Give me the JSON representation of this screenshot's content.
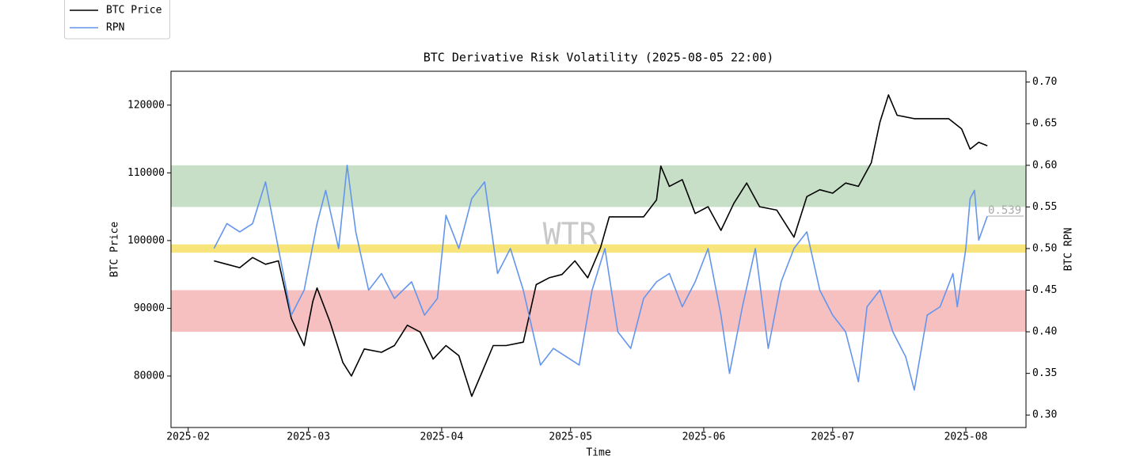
{
  "chart_data": {
    "type": "line",
    "title": "BTC Derivative Risk Volatility (2025-08-05 22:00)",
    "xlabel": "Time",
    "ylabel": "BTC Price",
    "y2label": "BTC RPN",
    "watermark": "WTR",
    "legend": "upper left",
    "xlim": [
      "2025-01-28",
      "2025-08-15"
    ],
    "xticks": [
      {
        "value": "2025-02-01",
        "label": "2025-02"
      },
      {
        "value": "2025-03-01",
        "label": "2025-03"
      },
      {
        "value": "2025-04-01",
        "label": "2025-04"
      },
      {
        "value": "2025-05-01",
        "label": "2025-05"
      },
      {
        "value": "2025-06-01",
        "label": "2025-06"
      },
      {
        "value": "2025-07-01",
        "label": "2025-07"
      },
      {
        "value": "2025-08-01",
        "label": "2025-08"
      }
    ],
    "ylim": [
      72400,
      125000
    ],
    "yticks": [
      80000,
      90000,
      100000,
      110000,
      120000
    ],
    "y2lim": [
      0.285,
      0.713
    ],
    "y2ticks": [
      {
        "value": 0.3,
        "label": "0.30"
      },
      {
        "value": 0.35,
        "label": "0.35"
      },
      {
        "value": 0.4,
        "label": "0.40"
      },
      {
        "value": 0.45,
        "label": "0.45"
      },
      {
        "value": 0.5,
        "label": "0.50"
      },
      {
        "value": 0.55,
        "label": "0.55"
      },
      {
        "value": 0.6,
        "label": "0.60"
      },
      {
        "value": 0.65,
        "label": "0.65"
      },
      {
        "value": 0.7,
        "label": "0.70"
      }
    ],
    "bands": [
      {
        "range": [
          0.55,
          0.6
        ],
        "color": "#c6dfc6",
        "axis": "y2"
      },
      {
        "range": [
          0.495,
          0.505
        ],
        "color": "#f7e57c",
        "axis": "y2"
      },
      {
        "range": [
          0.4,
          0.45
        ],
        "color": "#f6c0c0",
        "axis": "y2"
      }
    ],
    "annotations": [
      {
        "text": "0.539",
        "y": 0.539,
        "axis": "y2"
      }
    ],
    "series": [
      {
        "name": "BTC Price",
        "color": "#000000",
        "axis": "y",
        "x": [
          "2025-02-07",
          "2025-02-10",
          "2025-02-13",
          "2025-02-16",
          "2025-02-19",
          "2025-02-22",
          "2025-02-25",
          "2025-02-28",
          "2025-03-02",
          "2025-03-03",
          "2025-03-06",
          "2025-03-09",
          "2025-03-11",
          "2025-03-14",
          "2025-03-18",
          "2025-03-21",
          "2025-03-24",
          "2025-03-27",
          "2025-03-30",
          "2025-04-02",
          "2025-04-05",
          "2025-04-08",
          "2025-04-10",
          "2025-04-13",
          "2025-04-16",
          "2025-04-20",
          "2025-04-23",
          "2025-04-26",
          "2025-04-29",
          "2025-05-02",
          "2025-05-05",
          "2025-05-08",
          "2025-05-10",
          "2025-05-14",
          "2025-05-18",
          "2025-05-21",
          "2025-05-22",
          "2025-05-24",
          "2025-05-27",
          "2025-05-30",
          "2025-06-02",
          "2025-06-05",
          "2025-06-08",
          "2025-06-11",
          "2025-06-14",
          "2025-06-18",
          "2025-06-22",
          "2025-06-25",
          "2025-06-28",
          "2025-07-01",
          "2025-07-04",
          "2025-07-07",
          "2025-07-10",
          "2025-07-12",
          "2025-07-14",
          "2025-07-16",
          "2025-07-20",
          "2025-07-24",
          "2025-07-28",
          "2025-07-31",
          "2025-08-02",
          "2025-08-04",
          "2025-08-06"
        ],
        "values": [
          97000,
          96500,
          96000,
          97500,
          96500,
          97000,
          88500,
          84500,
          91000,
          93000,
          88000,
          82000,
          80000,
          84000,
          83500,
          84500,
          87500,
          86500,
          82500,
          84500,
          83000,
          77000,
          80000,
          84500,
          84500,
          85000,
          93500,
          94500,
          95000,
          97000,
          94500,
          99000,
          103500,
          103500,
          103500,
          106000,
          111000,
          108000,
          109000,
          104000,
          105000,
          101500,
          105500,
          108500,
          105000,
          104500,
          100500,
          106500,
          107500,
          107000,
          108500,
          108000,
          111500,
          117500,
          121500,
          118500,
          118000,
          118000,
          118000,
          116500,
          113500,
          114500,
          114000
        ]
      },
      {
        "name": "RPN",
        "color": "#6495ed",
        "axis": "y2",
        "x": [
          "2025-02-07",
          "2025-02-10",
          "2025-02-13",
          "2025-02-16",
          "2025-02-19",
          "2025-02-22",
          "2025-02-25",
          "2025-02-28",
          "2025-03-03",
          "2025-03-05",
          "2025-03-08",
          "2025-03-10",
          "2025-03-12",
          "2025-03-15",
          "2025-03-18",
          "2025-03-21",
          "2025-03-25",
          "2025-03-28",
          "2025-03-31",
          "2025-04-02",
          "2025-04-05",
          "2025-04-08",
          "2025-04-11",
          "2025-04-14",
          "2025-04-17",
          "2025-04-20",
          "2025-04-24",
          "2025-04-27",
          "2025-04-30",
          "2025-05-03",
          "2025-05-06",
          "2025-05-09",
          "2025-05-12",
          "2025-05-15",
          "2025-05-18",
          "2025-05-21",
          "2025-05-24",
          "2025-05-27",
          "2025-05-30",
          "2025-06-02",
          "2025-06-05",
          "2025-06-07",
          "2025-06-10",
          "2025-06-13",
          "2025-06-16",
          "2025-06-19",
          "2025-06-22",
          "2025-06-25",
          "2025-06-28",
          "2025-07-01",
          "2025-07-04",
          "2025-07-07",
          "2025-07-09",
          "2025-07-12",
          "2025-07-15",
          "2025-07-18",
          "2025-07-20",
          "2025-07-23",
          "2025-07-26",
          "2025-07-29",
          "2025-07-30",
          "2025-08-01",
          "2025-08-02",
          "2025-08-03",
          "2025-08-04",
          "2025-08-06"
        ],
        "values": [
          0.5,
          0.53,
          0.52,
          0.53,
          0.58,
          0.5,
          0.42,
          0.45,
          0.53,
          0.57,
          0.5,
          0.6,
          0.52,
          0.45,
          0.47,
          0.44,
          0.46,
          0.42,
          0.44,
          0.54,
          0.5,
          0.56,
          0.58,
          0.47,
          0.5,
          0.45,
          0.36,
          0.38,
          0.37,
          0.36,
          0.45,
          0.5,
          0.4,
          0.38,
          0.44,
          0.46,
          0.47,
          0.43,
          0.46,
          0.5,
          0.42,
          0.35,
          0.43,
          0.5,
          0.38,
          0.46,
          0.5,
          0.52,
          0.45,
          0.42,
          0.4,
          0.34,
          0.43,
          0.45,
          0.4,
          0.37,
          0.33,
          0.42,
          0.43,
          0.47,
          0.43,
          0.5,
          0.56,
          0.57,
          0.51,
          0.539
        ]
      }
    ]
  }
}
